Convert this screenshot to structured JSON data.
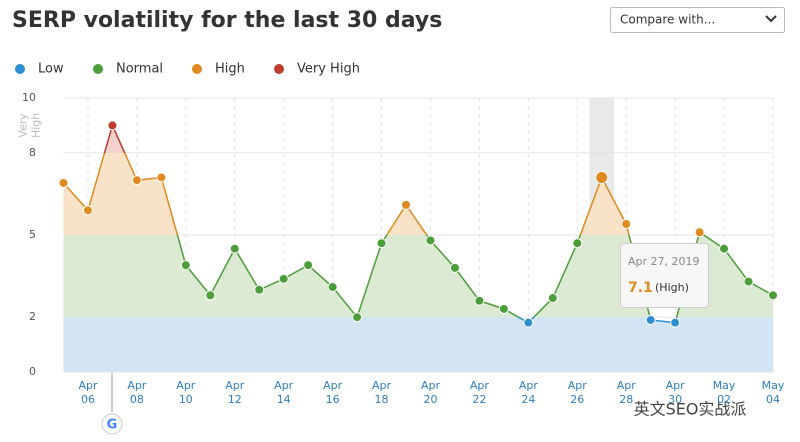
{
  "header": {
    "title": "SERP volatility for the last 30 days",
    "dropdown": "Compare with..."
  },
  "chart_data": {
    "type": "line",
    "categories": [
      null,
      "Apr 06",
      null,
      "Apr 08",
      null,
      "Apr 10",
      null,
      "Apr 12",
      null,
      "Apr 14",
      null,
      "Apr 16",
      null,
      "Apr 18",
      null,
      "Apr 20",
      null,
      "Apr 22",
      null,
      "Apr 24",
      null,
      "Apr 26",
      null,
      "Apr 28",
      null,
      "Apr 30",
      null,
      "May 02",
      null,
      "May 04"
    ],
    "values": [
      6.9,
      5.9,
      9.0,
      7.0,
      7.1,
      3.9,
      2.8,
      4.5,
      3.0,
      3.4,
      3.9,
      3.1,
      2.0,
      4.7,
      6.1,
      4.8,
      3.8,
      2.6,
      2.3,
      1.8,
      2.7,
      4.7,
      7.1,
      5.4,
      1.9,
      1.8,
      5.1,
      4.5,
      3.3,
      2.8
    ],
    "ylim": [
      0,
      10
    ],
    "yticks": [
      0,
      2,
      5,
      8,
      10
    ],
    "grid": true,
    "bands": [
      {
        "name": "Low",
        "from": 0,
        "to": 2,
        "color": "#2d8fcf",
        "fill": "#d3e5f2"
      },
      {
        "name": "Normal",
        "from": 2,
        "to": 5,
        "color": "#4c9e3a",
        "fill": "#dcead3"
      },
      {
        "name": "High",
        "from": 5,
        "to": 8,
        "color": "#df8a20",
        "fill": "#f8e2c8"
      },
      {
        "name": "Very High",
        "from": 8,
        "to": 10,
        "color": "#bf3b2e",
        "fill": "#f3d2cd"
      }
    ],
    "tooltip": {
      "index": 22,
      "date": "Apr 27, 2019",
      "level": "(High)"
    }
  },
  "watermark": "英文SEO实战派"
}
